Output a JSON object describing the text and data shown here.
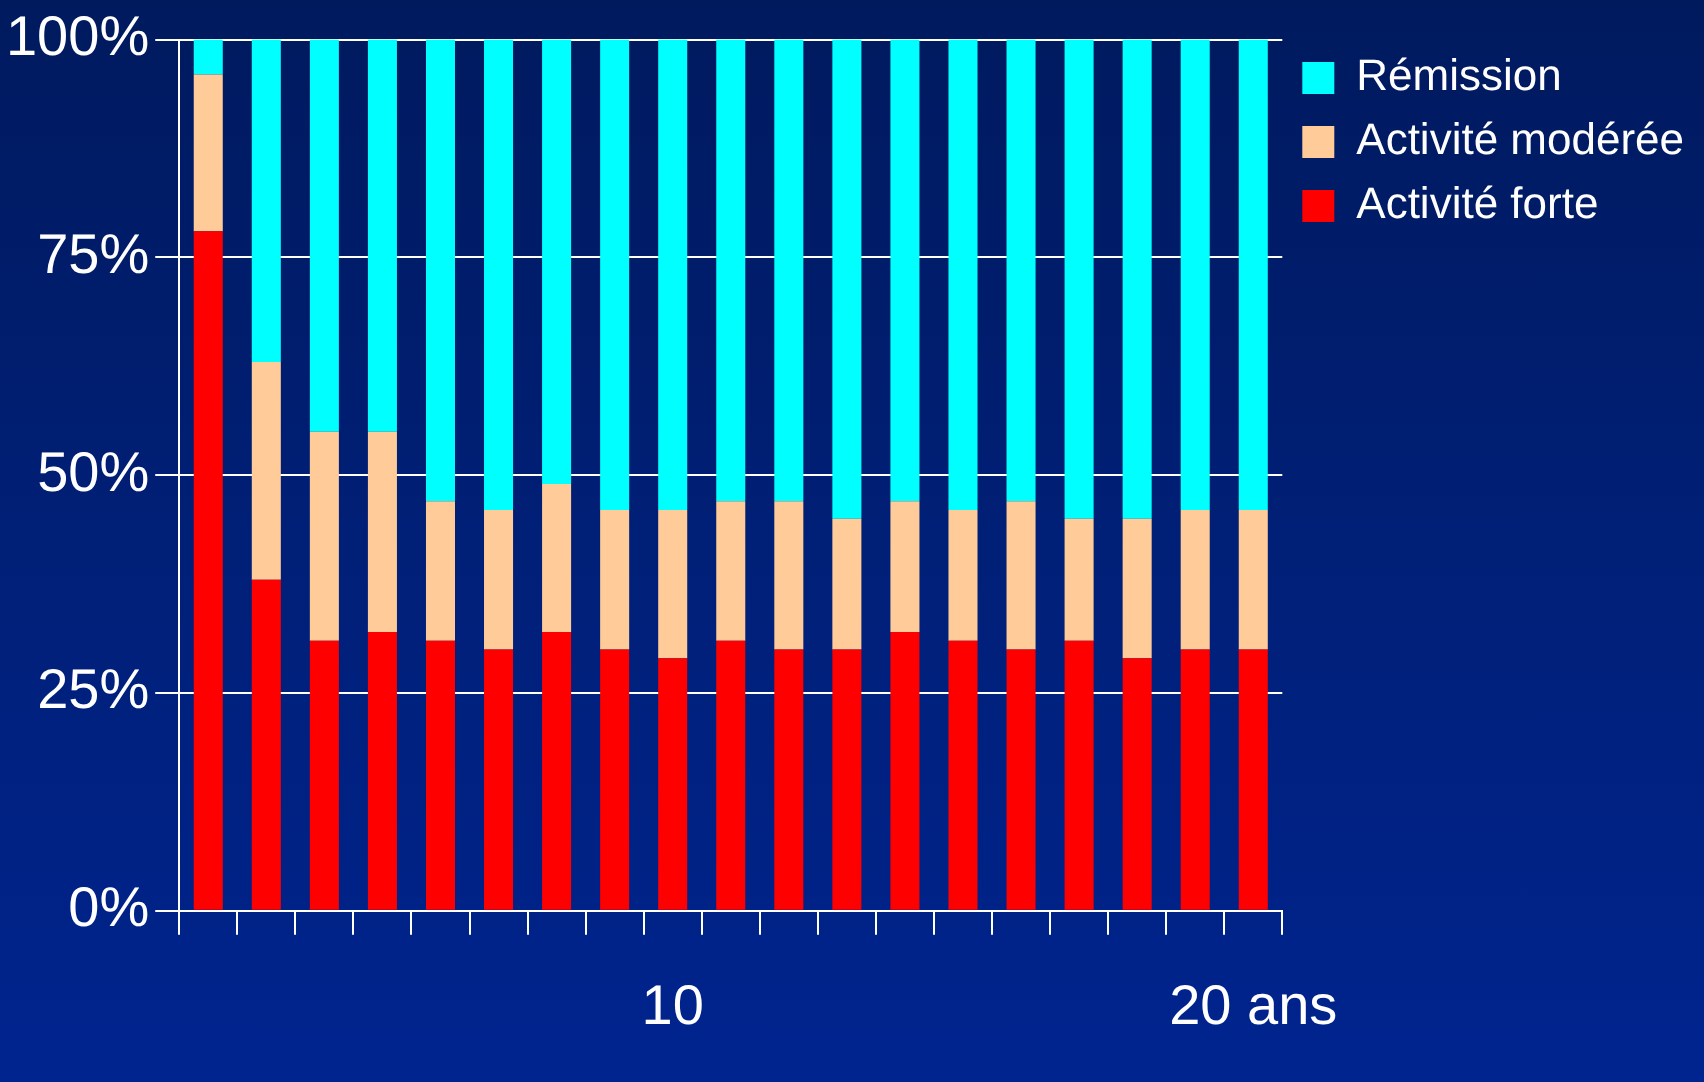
{
  "chart_data": {
    "type": "bar",
    "stacked": true,
    "categories": [
      null,
      null,
      null,
      null,
      null,
      null,
      null,
      null,
      "10",
      null,
      null,
      null,
      null,
      null,
      null,
      null,
      null,
      null,
      "20 ans"
    ],
    "series": [
      {
        "name": "Activité forte",
        "color": "#ff0000",
        "values": [
          78,
          38,
          31,
          32,
          31,
          30,
          32,
          30,
          29,
          31,
          30,
          30,
          32,
          31,
          30,
          31,
          29,
          30,
          30
        ]
      },
      {
        "name": "Activité modérée",
        "color": "#ffcc99",
        "values": [
          18,
          25,
          24,
          23,
          16,
          16,
          17,
          16,
          17,
          16,
          17,
          15,
          15,
          15,
          17,
          14,
          16,
          16,
          16
        ]
      },
      {
        "name": "Rémission",
        "color": "#00ffff",
        "values": [
          4,
          37,
          45,
          45,
          53,
          54,
          51,
          54,
          54,
          53,
          53,
          55,
          53,
          54,
          53,
          55,
          55,
          54,
          54
        ]
      }
    ],
    "ylim": [
      0,
      100
    ],
    "yticks": [
      {
        "value": 0,
        "label": "0%"
      },
      {
        "value": 25,
        "label": "25%"
      },
      {
        "value": 50,
        "label": "50%"
      },
      {
        "value": 75,
        "label": "75%"
      },
      {
        "value": 100,
        "label": "100%"
      }
    ],
    "grid": "y",
    "legend": "right"
  }
}
